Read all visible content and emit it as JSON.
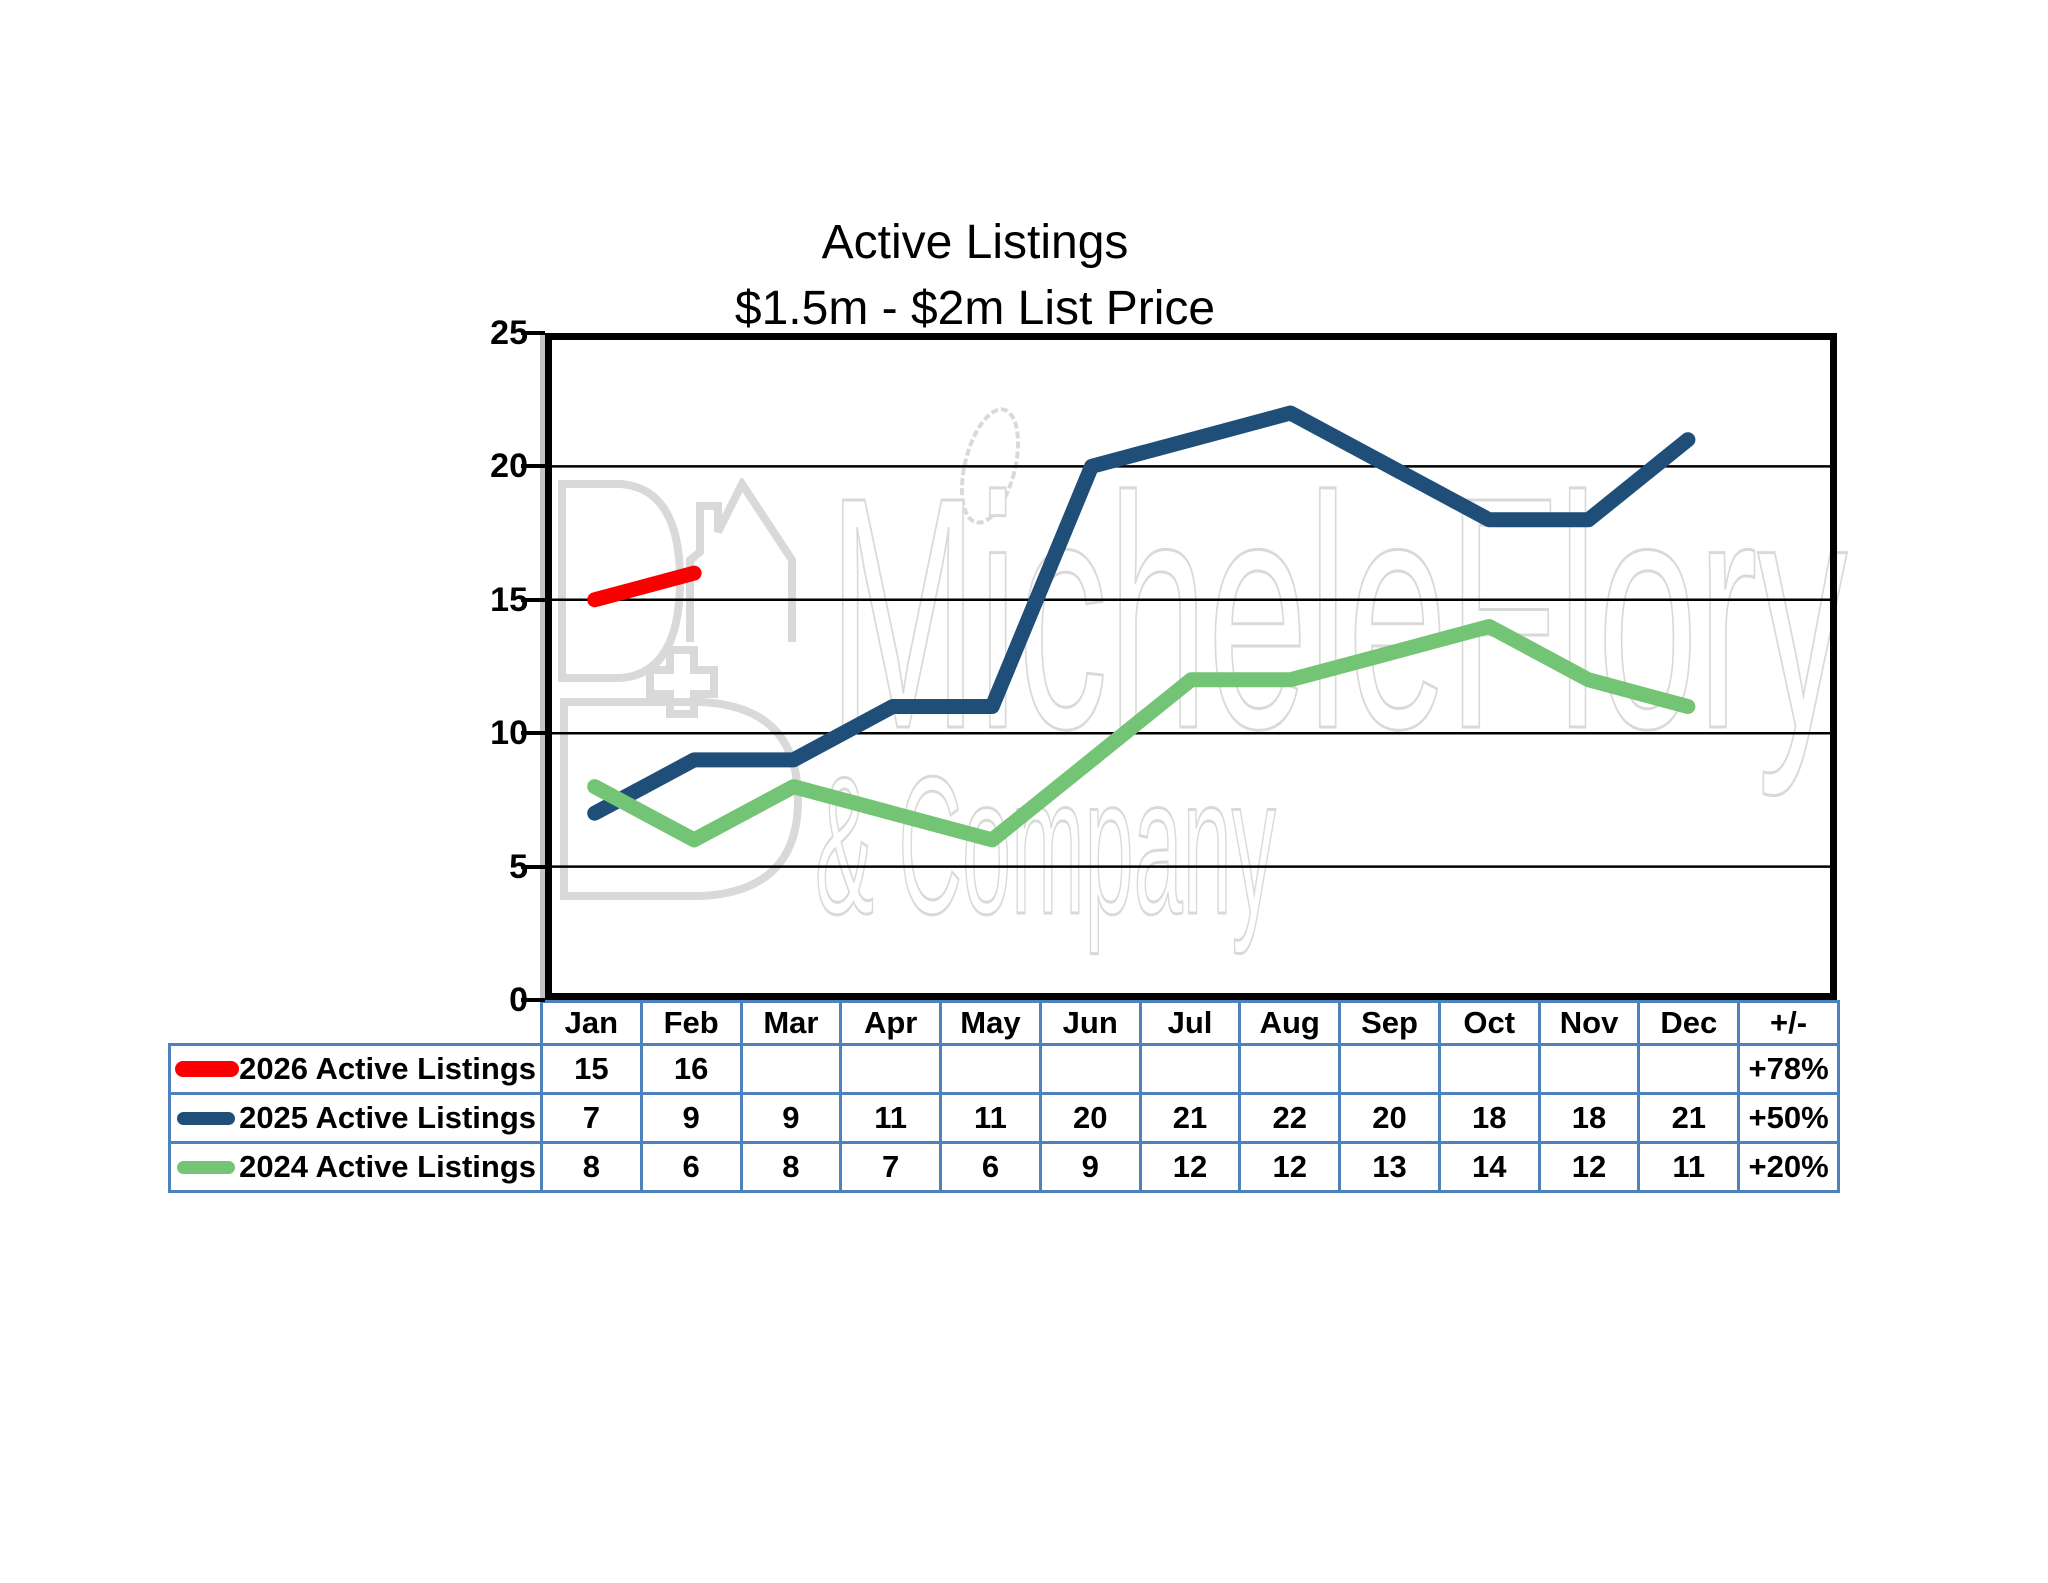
{
  "title": {
    "line1": "Active Listings",
    "line2": "$1.5m - $2m List Price"
  },
  "watermark": {
    "line1": "MicheleFlory",
    "line2": "& Company",
    "logo": "house-letters-logo",
    "leaf": "leaf-icon",
    "color": "#d9d9d9"
  },
  "colors": {
    "table_border": "#4f81bd",
    "grid_line": "#000000",
    "plot_border": "#000000"
  },
  "table": {
    "plus_minus_header": "+/-"
  },
  "chart_data": {
    "type": "line",
    "title": "Active Listings $1.5m - $2m List Price",
    "categories": [
      "Jan",
      "Feb",
      "Mar",
      "Apr",
      "May",
      "Jun",
      "Jul",
      "Aug",
      "Sep",
      "Oct",
      "Nov",
      "Dec"
    ],
    "series": [
      {
        "name": "2026 Active Listings",
        "color": "#fa0000",
        "values": [
          15,
          16,
          null,
          null,
          null,
          null,
          null,
          null,
          null,
          null,
          null,
          null
        ],
        "change": "+78%"
      },
      {
        "name": "2025 Active Listings",
        "color": "#1f4e79",
        "values": [
          7,
          9,
          9,
          11,
          11,
          20,
          21,
          22,
          20,
          18,
          18,
          21
        ],
        "change": "+50%"
      },
      {
        "name": "2024 Active Listings",
        "color": "#74c476",
        "values": [
          8,
          6,
          8,
          7,
          6,
          9,
          12,
          12,
          13,
          14,
          12,
          11
        ],
        "change": "+20%"
      }
    ],
    "xlabel": "",
    "ylabel": "",
    "ylim": [
      0,
      25
    ],
    "y_ticks": [
      0,
      5,
      10,
      15,
      20,
      25
    ],
    "grid": true,
    "legend_position": "table-below"
  }
}
